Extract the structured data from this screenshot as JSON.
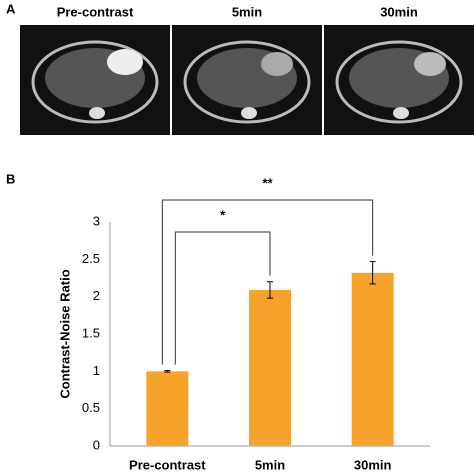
{
  "panel_a": {
    "label": "A",
    "titles": [
      "Pre-contrast",
      "5min",
      "30min"
    ]
  },
  "chart_data": {
    "type": "bar",
    "panel_label": "B",
    "ylabel": "Contrast-Noise Ratio",
    "categories": [
      "Pre-contrast",
      "5min",
      "30min"
    ],
    "values": [
      1.0,
      2.09,
      2.32
    ],
    "errors": [
      0.01,
      0.11,
      0.15
    ],
    "color": "#f5a32a",
    "ylim": [
      0,
      3
    ],
    "yticks": [
      0,
      0.5,
      1,
      1.5,
      2,
      2.5,
      3
    ],
    "grid": false,
    "annotations": [
      {
        "text": "*",
        "from": 0,
        "to": 1
      },
      {
        "text": "**",
        "from": 0,
        "to": 2
      }
    ]
  }
}
